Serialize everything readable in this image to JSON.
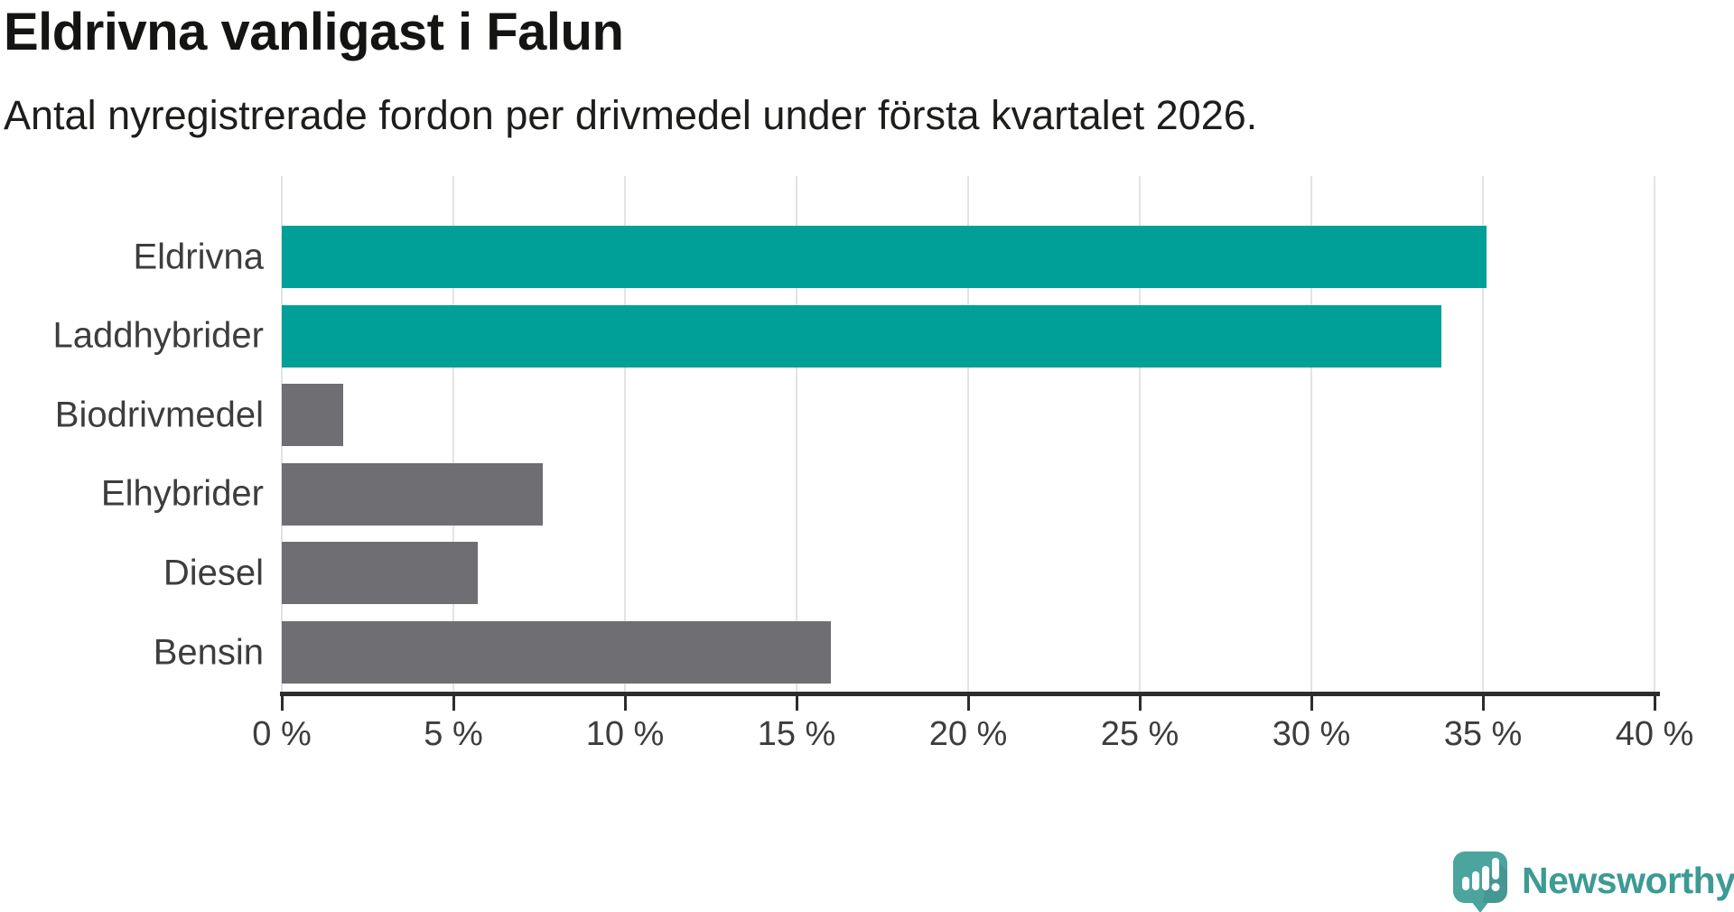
{
  "header": {
    "title": "Eldrivna vanligast i Falun",
    "subtitle": "Antal nyregistrerade fordon per drivmedel under första kvartalet 2026."
  },
  "chart_data": {
    "type": "bar",
    "orientation": "horizontal",
    "title": "Eldrivna vanligast i Falun",
    "subtitle": "Antal nyregistrerade fordon per drivmedel under första kvartalet 2026.",
    "categories": [
      "Eldrivna",
      "Laddhybrider",
      "Biodrivmedel",
      "Elhybrider",
      "Diesel",
      "Bensin"
    ],
    "values": [
      35.1,
      33.8,
      1.8,
      7.6,
      5.7,
      16.0
    ],
    "unit": "%",
    "bar_colors": [
      "#00a099",
      "#00a099",
      "#6e6e73",
      "#6e6e73",
      "#6e6e73",
      "#6e6e73"
    ],
    "highlight_color": "#00a099",
    "default_color": "#6e6e73",
    "xlabel": "",
    "ylabel": "",
    "xlim": [
      0,
      40
    ],
    "x_ticks": [
      0,
      5,
      10,
      15,
      20,
      25,
      30,
      35,
      40
    ],
    "x_tick_labels": [
      "0 %",
      "5 %",
      "10 %",
      "15 %",
      "20 %",
      "25 %",
      "30 %",
      "35 %",
      "40 %"
    ],
    "grid": true,
    "gridline_color": "#e3e3e3",
    "axis_color": "#2d2d2d",
    "legend": "none"
  },
  "branding": {
    "wordmark": "Newsworthy",
    "wordmark_color": "#3c9b94",
    "icon_color": "#4ba49d"
  }
}
